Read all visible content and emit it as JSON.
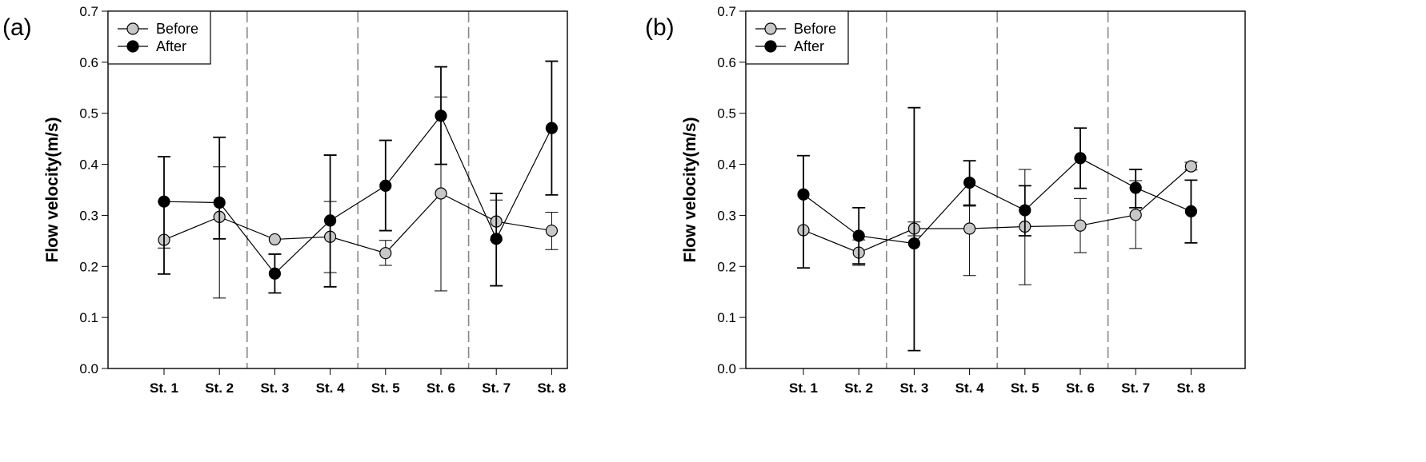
{
  "chart_data": [
    {
      "panel_label": "(a)",
      "type": "line",
      "ylabel": "Flow velocity(m/s)",
      "ylim": [
        0,
        0.7
      ],
      "yticks": [
        "0.0",
        "0.1",
        "0.2",
        "0.3",
        "0.4",
        "0.5",
        "0.6",
        "0.7"
      ],
      "categories": [
        "St. 1",
        "St. 2",
        "St. 3",
        "St. 4",
        "St. 5",
        "St. 6",
        "St. 7",
        "St. 8"
      ],
      "dividers_between": [
        2,
        4,
        6
      ],
      "legend_position": "top-left",
      "series": [
        {
          "name": "Before",
          "marker_color": "#c8c8c8",
          "values": [
            0.252,
            0.297,
            0.253,
            0.258,
            0.226,
            0.343,
            0.288,
            0.27
          ],
          "err_low": [
            0.236,
            0.138,
            null,
            0.188,
            0.202,
            0.152,
            0.252,
            0.233
          ],
          "err_high": [
            0.327,
            0.395,
            null,
            0.327,
            0.251,
            0.532,
            0.33,
            0.306
          ]
        },
        {
          "name": "After",
          "marker_color": "#000000",
          "values": [
            0.327,
            0.325,
            0.186,
            0.29,
            0.358,
            0.495,
            0.254,
            0.471
          ],
          "err_low": [
            0.185,
            0.254,
            0.148,
            0.16,
            0.27,
            0.4,
            0.162,
            0.34
          ],
          "err_high": [
            0.415,
            0.453,
            0.224,
            0.418,
            0.447,
            0.591,
            0.343,
            0.602
          ]
        }
      ]
    },
    {
      "panel_label": "(b)",
      "type": "line",
      "ylabel": "Flow velocity(m/s)",
      "ylim": [
        0,
        0.7
      ],
      "yticks": [
        "0.0",
        "0.1",
        "0.2",
        "0.3",
        "0.4",
        "0.5",
        "0.6",
        "0.7"
      ],
      "categories": [
        "St. 1",
        "St. 2",
        "St. 3",
        "St. 4",
        "St. 5",
        "St. 6",
        "St. 7",
        "St. 8"
      ],
      "dividers_between": [
        2,
        4,
        6
      ],
      "legend_position": "top-left",
      "series": [
        {
          "name": "Before",
          "marker_color": "#c8c8c8",
          "values": [
            0.271,
            0.227,
            0.274,
            0.274,
            0.278,
            0.28,
            0.301,
            0.396
          ],
          "err_low": [
            null,
            0.202,
            0.26,
            0.182,
            0.164,
            0.227,
            0.235,
            0.389
          ],
          "err_high": [
            null,
            0.252,
            0.287,
            0.318,
            0.39,
            0.333,
            0.368,
            0.404
          ]
        },
        {
          "name": "After",
          "marker_color": "#000000",
          "values": [
            0.341,
            0.26,
            0.245,
            0.364,
            0.31,
            0.412,
            0.354,
            0.308
          ],
          "err_low": [
            0.197,
            0.205,
            0.035,
            0.32,
            0.26,
            0.353,
            0.315,
            0.246
          ],
          "err_high": [
            0.417,
            0.315,
            0.511,
            0.407,
            0.358,
            0.471,
            0.39,
            0.369
          ]
        }
      ]
    }
  ]
}
